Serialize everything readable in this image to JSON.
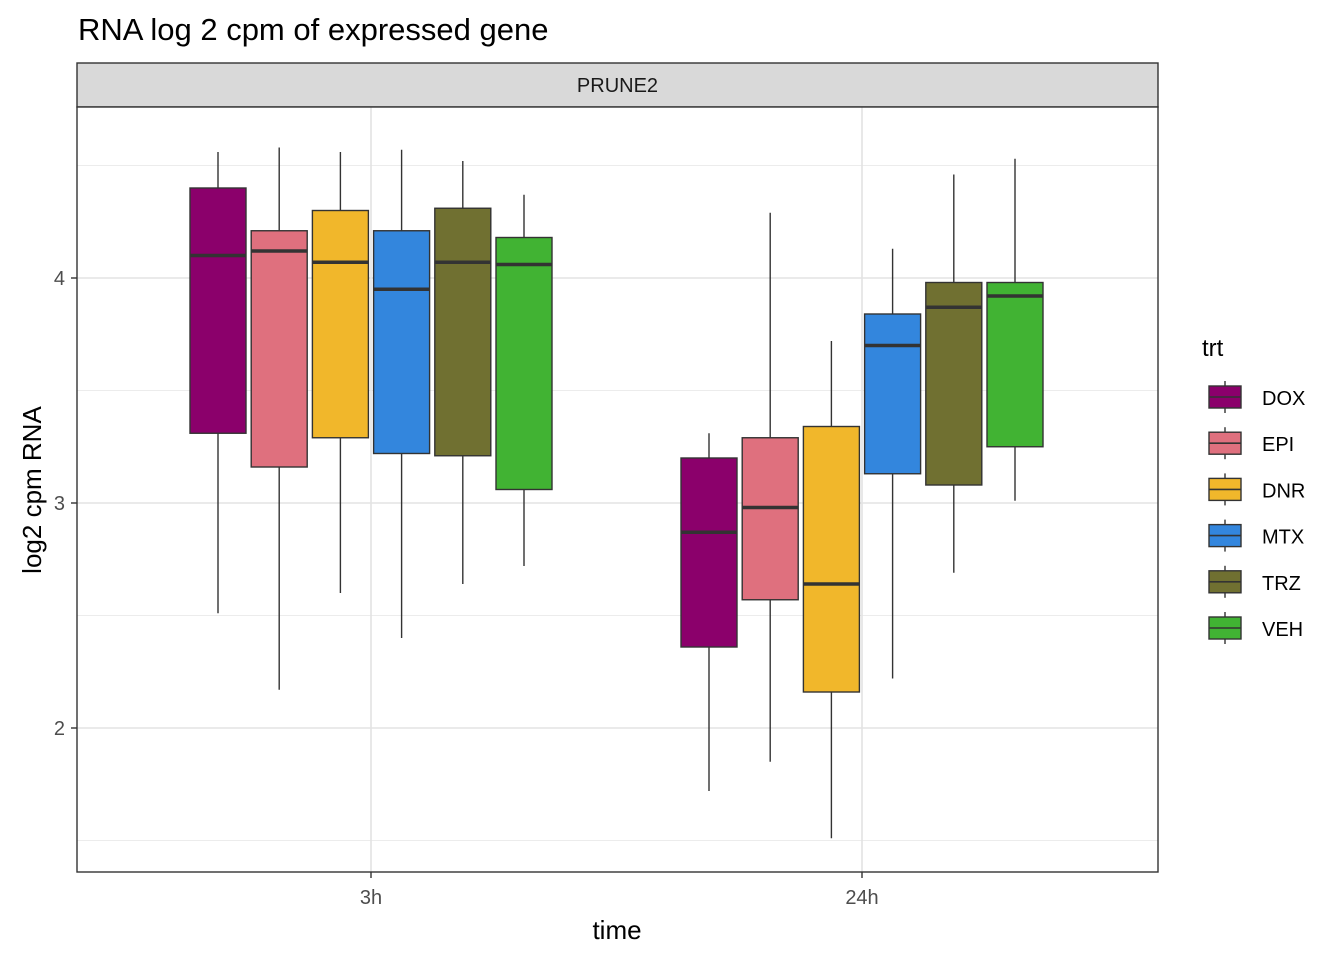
{
  "chart_data": {
    "type": "boxplot",
    "title": "RNA log 2 cpm of expressed gene",
    "facet": "PRUNE2",
    "xlabel": "time",
    "ylabel": "log2 cpm RNA",
    "categories": [
      "3h",
      "24h"
    ],
    "yticks": [
      2,
      3,
      4
    ],
    "ylim": [
      1.35,
      4.75
    ],
    "grid": true,
    "legend": {
      "title": "trt",
      "position": "right"
    },
    "series": [
      {
        "name": "DOX",
        "color": "#8B006B",
        "boxes": [
          {
            "min": 2.51,
            "q1": 3.31,
            "median": 4.1,
            "q3": 4.4,
            "max": 4.56
          },
          {
            "min": 1.72,
            "q1": 2.36,
            "median": 2.87,
            "q3": 3.2,
            "max": 3.31
          }
        ]
      },
      {
        "name": "EPI",
        "color": "#DF707E",
        "boxes": [
          {
            "min": 2.17,
            "q1": 3.16,
            "median": 4.12,
            "q3": 4.21,
            "max": 4.58
          },
          {
            "min": 1.85,
            "q1": 2.57,
            "median": 2.98,
            "q3": 3.29,
            "max": 4.29
          }
        ]
      },
      {
        "name": "DNR",
        "color": "#F1B72B",
        "boxes": [
          {
            "min": 2.6,
            "q1": 3.29,
            "median": 4.07,
            "q3": 4.3,
            "max": 4.56
          },
          {
            "min": 1.51,
            "q1": 2.16,
            "median": 2.64,
            "q3": 3.34,
            "max": 3.72
          }
        ]
      },
      {
        "name": "MTX",
        "color": "#3386DD",
        "boxes": [
          {
            "min": 2.4,
            "q1": 3.22,
            "median": 3.95,
            "q3": 4.21,
            "max": 4.57
          },
          {
            "min": 2.22,
            "q1": 3.13,
            "median": 3.7,
            "q3": 3.84,
            "max": 4.13
          }
        ]
      },
      {
        "name": "TRZ",
        "color": "#707031",
        "boxes": [
          {
            "min": 2.64,
            "q1": 3.21,
            "median": 4.07,
            "q3": 4.31,
            "max": 4.52
          },
          {
            "min": 2.69,
            "q1": 3.08,
            "median": 3.87,
            "q3": 3.98,
            "max": 4.46
          }
        ]
      },
      {
        "name": "VEH",
        "color": "#41B333",
        "boxes": [
          {
            "min": 2.72,
            "q1": 3.06,
            "median": 4.06,
            "q3": 4.18,
            "max": 4.37
          },
          {
            "min": 3.01,
            "q1": 3.25,
            "median": 3.92,
            "q3": 3.98,
            "max": 4.53
          }
        ]
      }
    ]
  }
}
